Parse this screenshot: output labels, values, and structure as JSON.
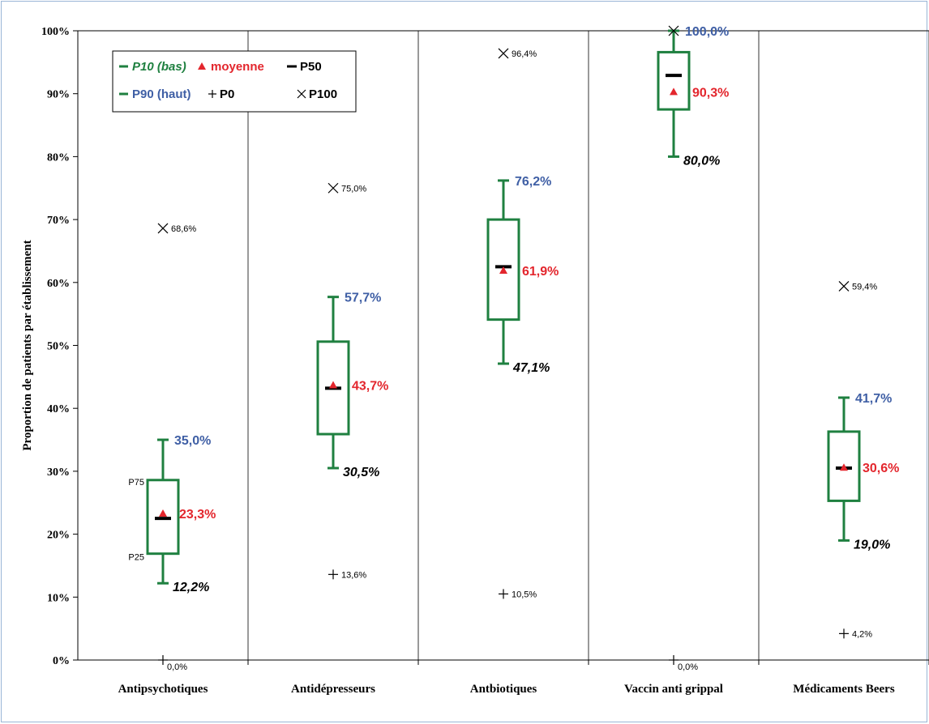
{
  "chart_data": {
    "type": "boxplot",
    "title": "",
    "ylabel": "Proportion de patients par établissement",
    "xlabel": "",
    "ylim": [
      0,
      100
    ],
    "y_ticks": [
      "0%",
      "10%",
      "20%",
      "30%",
      "40%",
      "50%",
      "60%",
      "70%",
      "80%",
      "90%",
      "100%"
    ],
    "categories": [
      "Antipsychotiques",
      "Antidépresseurs",
      "Antbiotiques",
      "Vaccin anti grippal",
      "Médicaments Beers"
    ],
    "series": [
      {
        "name": "P0",
        "values": [
          0.0,
          13.6,
          10.5,
          0.0,
          4.2
        ]
      },
      {
        "name": "P10 (bas)",
        "values": [
          12.2,
          30.5,
          47.1,
          80.0,
          19.0
        ]
      },
      {
        "name": "P25",
        "values": [
          16.9,
          35.9,
          54.1,
          87.5,
          25.3
        ]
      },
      {
        "name": "P50",
        "values": [
          22.5,
          43.2,
          62.5,
          92.9,
          30.5
        ]
      },
      {
        "name": "moyenne",
        "values": [
          23.3,
          43.7,
          61.9,
          90.3,
          30.6
        ]
      },
      {
        "name": "P75",
        "values": [
          28.6,
          50.6,
          70.0,
          96.6,
          36.3
        ]
      },
      {
        "name": "P90 (haut)",
        "values": [
          35.0,
          57.7,
          76.2,
          100.0,
          41.7
        ]
      },
      {
        "name": "P100",
        "values": [
          68.6,
          75.0,
          96.4,
          100.0,
          59.4
        ]
      }
    ],
    "labels": {
      "p0": [
        "0,0%",
        "13,6%",
        "10,5%",
        "0,0%",
        "4,2%"
      ],
      "p10": [
        "12,2%",
        "30,5%",
        "47,1%",
        "80,0%",
        "19,0%"
      ],
      "mean": [
        "23,3%",
        "43,7%",
        "61,9%",
        "90,3%",
        "30,6%"
      ],
      "p90": [
        "35,0%",
        "57,7%",
        "76,2%",
        "100,0%",
        "41,7%"
      ],
      "p100": [
        "68,6%",
        "75,0%",
        "96,4%",
        "",
        "59,4%"
      ],
      "p75_annotation": "P75",
      "p25_annotation": "P25"
    },
    "legend": {
      "position": "top-left",
      "items": [
        {
          "key": "p10",
          "label": "P10 (bas)",
          "color": "#1f8040"
        },
        {
          "key": "mean",
          "label": "moyenne",
          "color": "#e3262d"
        },
        {
          "key": "p50",
          "label": "P50",
          "color": "#000000"
        },
        {
          "key": "p90",
          "label": "P90 (haut)",
          "color": "#3f5fa5"
        },
        {
          "key": "p0",
          "label": "P0",
          "color": "#000000"
        },
        {
          "key": "p100",
          "label": "P100",
          "color": "#000000"
        }
      ]
    },
    "colors": {
      "box": "#1f8040",
      "mean": "#e3262d",
      "p90_label": "#3f5fa5",
      "p10_label": "#000000",
      "axis": "#000000"
    }
  }
}
